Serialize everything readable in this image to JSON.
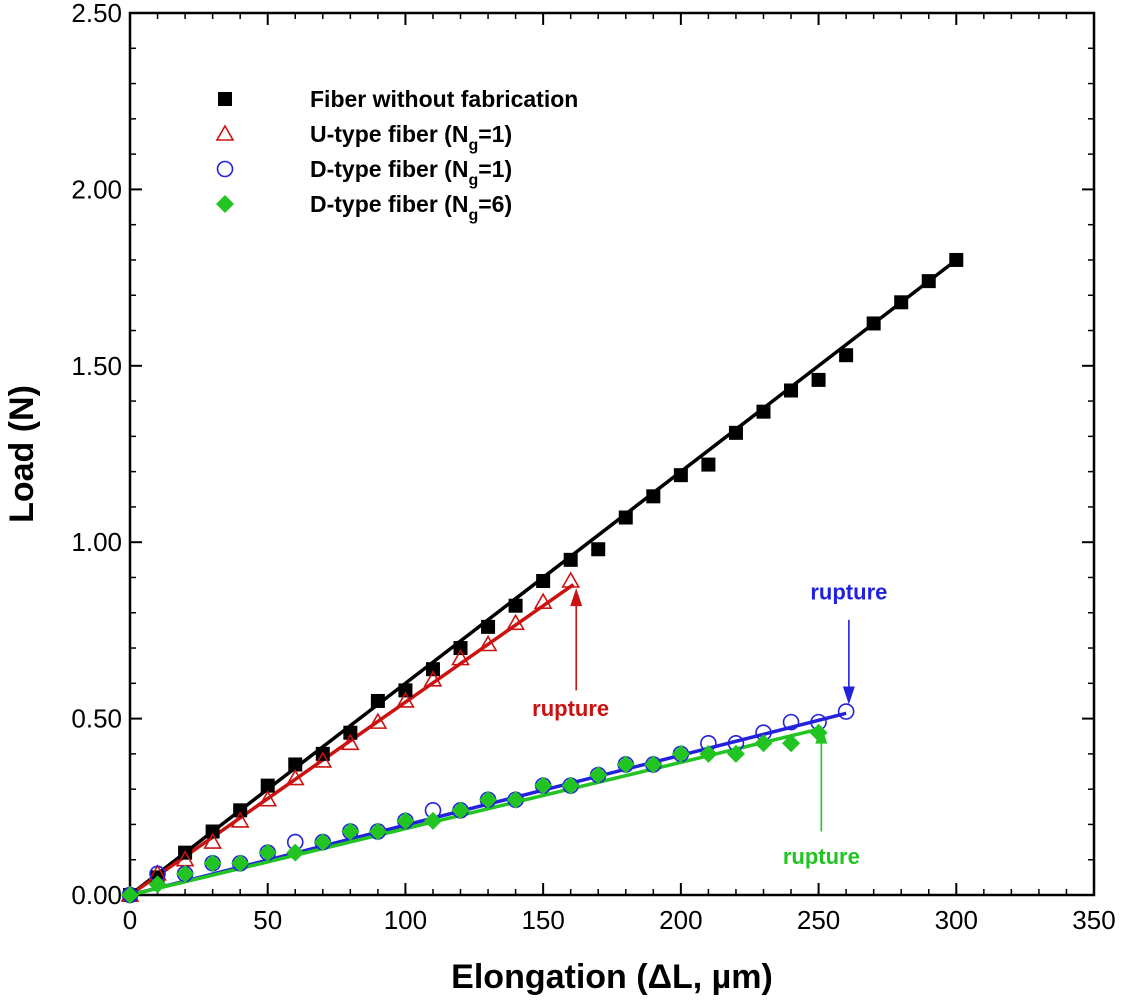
{
  "chart_data": {
    "type": "scatter",
    "xlabel": "Elongation (ΔL, µm)",
    "ylabel": "Load (N)",
    "xlim": [
      0,
      350
    ],
    "ylim": [
      0,
      2.5
    ],
    "xticks": [
      0,
      50,
      100,
      150,
      200,
      250,
      300,
      350
    ],
    "xtick_labels": [
      "0",
      "50",
      "100",
      "150",
      "200",
      "250",
      "300",
      "350"
    ],
    "yticks": [
      0,
      0.5,
      1.0,
      1.5,
      2.0,
      2.5
    ],
    "ytick_labels": [
      "0.00",
      "0.50",
      "1.00",
      "1.50",
      "2.00",
      "2.50"
    ],
    "grid": false,
    "legend_position": "top-left",
    "series": [
      {
        "name": "Fiber without fabrication",
        "legend_main": "Fiber without fabrication",
        "legend_sub": "",
        "legend_tail": "",
        "marker": "square",
        "color": "#000000",
        "filled": true,
        "fit": {
          "x": [
            0,
            300
          ],
          "y": [
            0.0,
            1.8
          ]
        },
        "x": [
          0,
          10,
          20,
          30,
          40,
          50,
          60,
          70,
          80,
          90,
          100,
          110,
          120,
          130,
          140,
          150,
          160,
          170,
          180,
          190,
          200,
          210,
          220,
          230,
          240,
          250,
          260,
          270,
          280,
          290,
          300
        ],
        "y": [
          0.0,
          0.05,
          0.12,
          0.18,
          0.24,
          0.31,
          0.37,
          0.4,
          0.46,
          0.55,
          0.58,
          0.64,
          0.7,
          0.76,
          0.82,
          0.89,
          0.95,
          0.98,
          1.07,
          1.13,
          1.19,
          1.22,
          1.31,
          1.37,
          1.43,
          1.46,
          1.53,
          1.62,
          1.68,
          1.74,
          1.8
        ]
      },
      {
        "name": "U-type fiber (Ng=1)",
        "legend_main": "U-type fiber (N",
        "legend_sub": "g",
        "legend_tail": "=1)",
        "marker": "triangle-open",
        "color": "#cc1111",
        "filled": false,
        "fit": {
          "x": [
            0,
            161
          ],
          "y": [
            0.0,
            0.88
          ]
        },
        "x": [
          0,
          10,
          20,
          30,
          40,
          50,
          60,
          70,
          80,
          90,
          100,
          110,
          120,
          130,
          140,
          150,
          160
        ],
        "y": [
          0.0,
          0.06,
          0.1,
          0.15,
          0.21,
          0.27,
          0.33,
          0.38,
          0.43,
          0.49,
          0.55,
          0.61,
          0.67,
          0.71,
          0.77,
          0.83,
          0.89
        ]
      },
      {
        "name": "D-type fiber (Ng=1)",
        "legend_main": "D-type fiber (N",
        "legend_sub": "g",
        "legend_tail": "=1)",
        "marker": "circle-open",
        "color": "#2222dd",
        "filled": false,
        "fit": {
          "x": [
            0,
            260
          ],
          "y": [
            0.0,
            0.515
          ]
        },
        "x": [
          0,
          10,
          20,
          30,
          40,
          50,
          60,
          70,
          80,
          90,
          100,
          110,
          120,
          130,
          140,
          150,
          160,
          170,
          180,
          190,
          200,
          210,
          220,
          230,
          240,
          250,
          260
        ],
        "y": [
          0.0,
          0.06,
          0.06,
          0.09,
          0.09,
          0.12,
          0.15,
          0.15,
          0.18,
          0.18,
          0.21,
          0.24,
          0.24,
          0.27,
          0.27,
          0.31,
          0.31,
          0.34,
          0.37,
          0.37,
          0.4,
          0.43,
          0.43,
          0.46,
          0.49,
          0.49,
          0.52
        ]
      },
      {
        "name": "D-type fiber (Ng=6)",
        "legend_main": "D-type fiber (N",
        "legend_sub": "g",
        "legend_tail": "=6)",
        "marker": "diamond",
        "color": "#22c422",
        "filled": true,
        "fit": {
          "x": [
            0,
            250
          ],
          "y": [
            0.0,
            0.47
          ]
        },
        "x": [
          0,
          10,
          20,
          30,
          40,
          50,
          60,
          70,
          80,
          90,
          100,
          110,
          120,
          130,
          140,
          150,
          160,
          170,
          180,
          190,
          200,
          210,
          220,
          230,
          240,
          250
        ],
        "y": [
          0.0,
          0.03,
          0.06,
          0.09,
          0.09,
          0.12,
          0.12,
          0.15,
          0.18,
          0.18,
          0.21,
          0.21,
          0.24,
          0.27,
          0.27,
          0.31,
          0.31,
          0.34,
          0.37,
          0.37,
          0.4,
          0.4,
          0.4,
          0.43,
          0.43,
          0.46
        ]
      }
    ],
    "annotations": [
      {
        "text": "rupture",
        "color": "#cc1111",
        "arrow_x": 162,
        "arrow_from_y": 0.58,
        "arrow_to_y": 0.87,
        "text_x": 160,
        "text_y": 0.53
      },
      {
        "text": "rupture",
        "color": "#2222dd",
        "arrow_x": 261,
        "arrow_from_y": 0.78,
        "arrow_to_y": 0.54,
        "text_x": 261,
        "text_y": 0.86
      },
      {
        "text": "rupture",
        "color": "#22c422",
        "arrow_x": 251,
        "arrow_from_y": 0.18,
        "arrow_to_y": 0.48,
        "text_x": 251,
        "text_y": 0.11
      }
    ]
  }
}
